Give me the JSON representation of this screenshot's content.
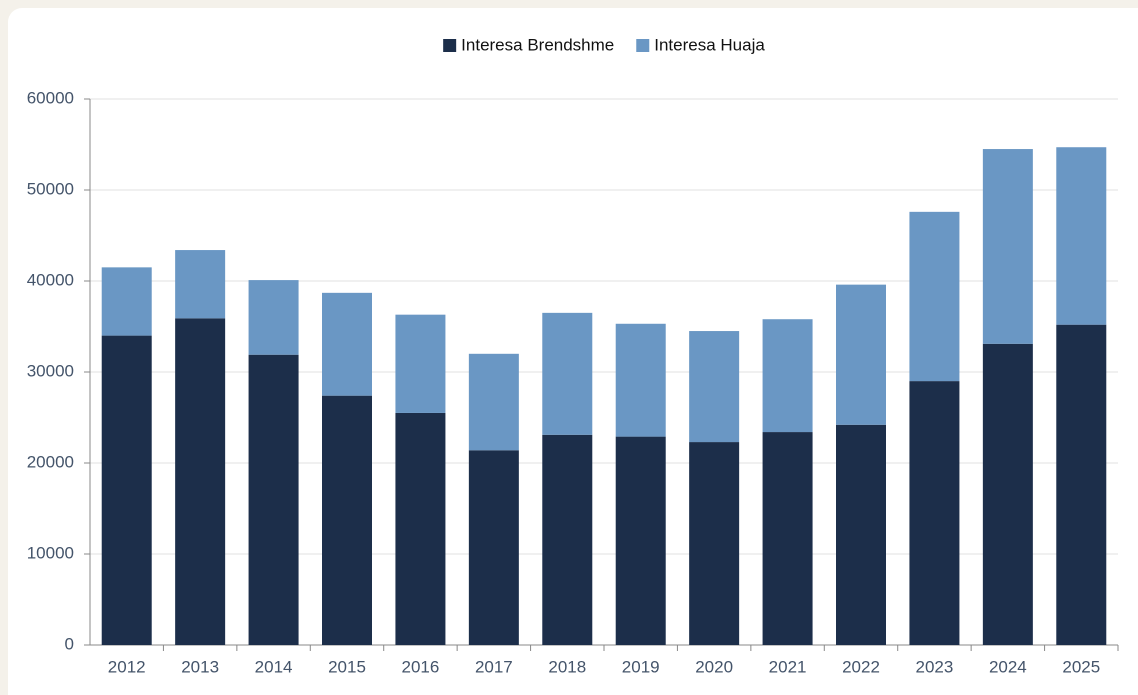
{
  "chart_data": {
    "type": "stacked_bar",
    "categories": [
      "2012",
      "2013",
      "2014",
      "2015",
      "2016",
      "2017",
      "2018",
      "2019",
      "2020",
      "2021",
      "2022",
      "2023",
      "2024",
      "2025"
    ],
    "series": [
      {
        "name": "Interesa Brendshme",
        "color": "#1c2e4a",
        "values": [
          34000,
          35900,
          31900,
          27400,
          25500,
          21400,
          23100,
          22900,
          22300,
          23400,
          24200,
          29000,
          33100,
          35200
        ]
      },
      {
        "name": "Interesa Huaja",
        "color": "#6a97c4",
        "values": [
          7500,
          7500,
          8200,
          11300,
          10800,
          10600,
          13400,
          12400,
          12200,
          12400,
          15400,
          18600,
          21400,
          19500
        ]
      }
    ],
    "ylim": [
      0,
      60000
    ],
    "yticks": [
      0,
      10000,
      20000,
      30000,
      40000,
      50000,
      60000
    ],
    "grid": true,
    "legend": "top"
  }
}
